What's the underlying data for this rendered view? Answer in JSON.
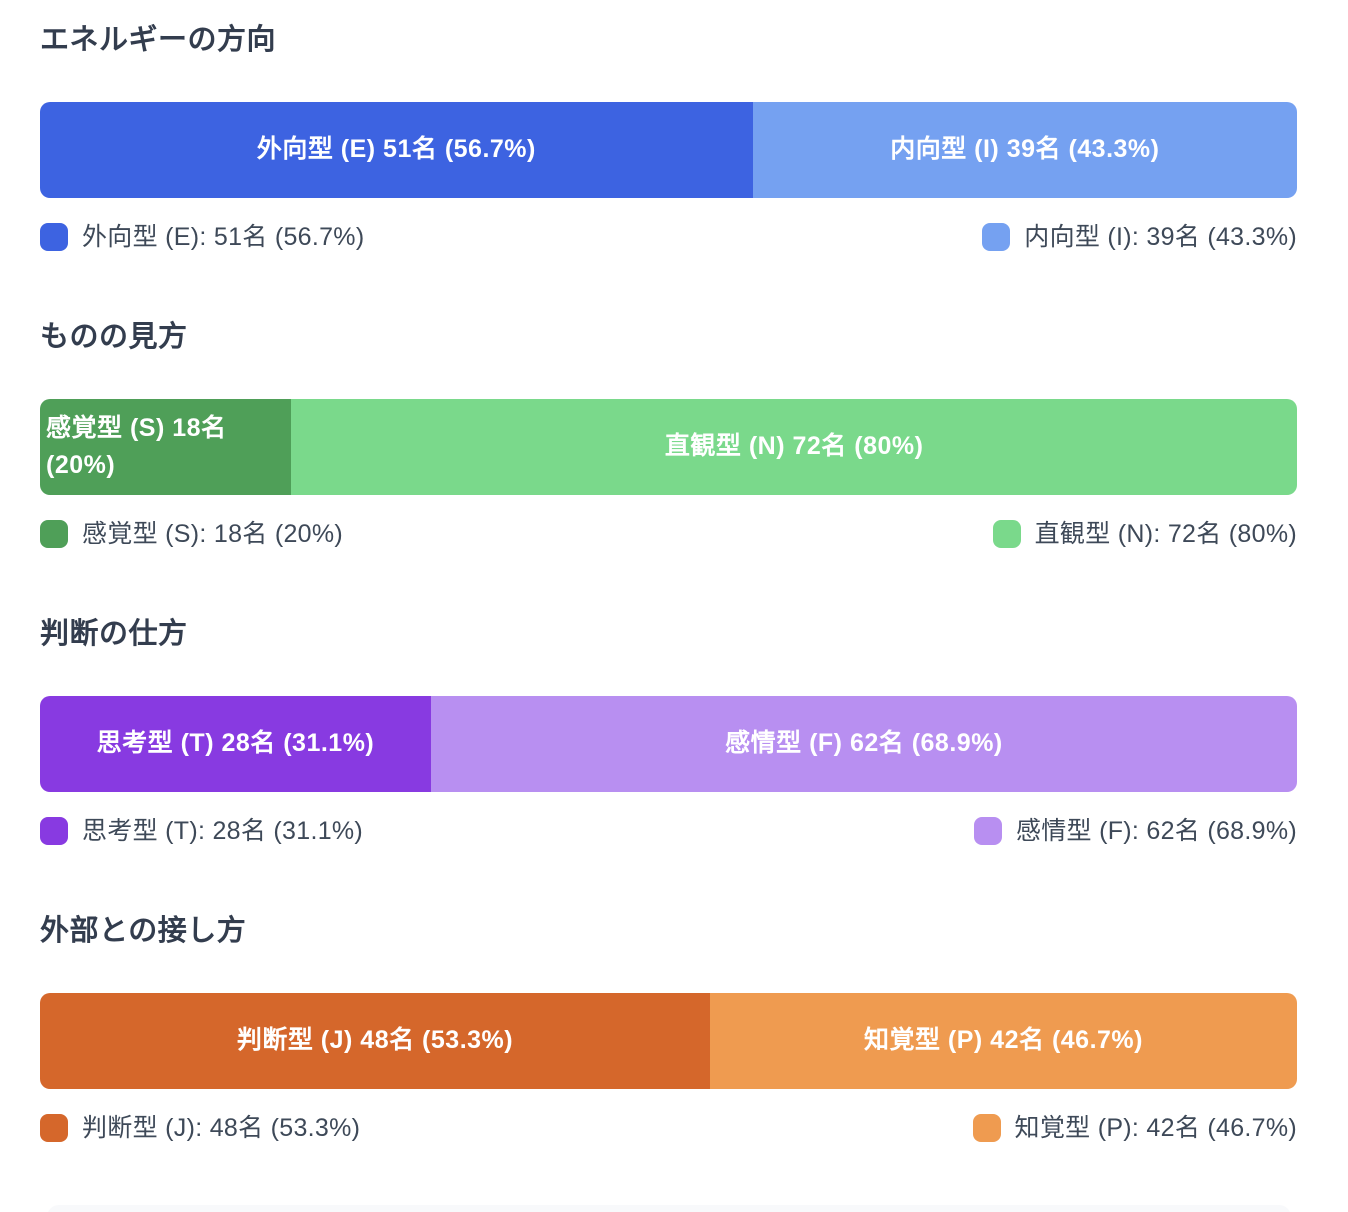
{
  "page": {
    "background": "#ffffff",
    "panel_color": "#F8F9FB",
    "heading_color": "#333D4E",
    "legend_text_color": "#3E4958"
  },
  "chart_data": [
    {
      "type": "bar",
      "variant": "stacked-horizontal-100pct",
      "title": "エネルギーの方向",
      "legend_position": "below, left and right aligned",
      "segments": [
        {
          "name": "外向型 (E)",
          "count": 51,
          "unit": "名",
          "percent": 56.7,
          "color": "#3D63E1",
          "bar_label": "外向型 (E) 51名 (56.7%)",
          "legend_label": "外向型 (E): 51名 (56.7%)"
        },
        {
          "name": "内向型 (I)",
          "count": 39,
          "unit": "名",
          "percent": 43.3,
          "color": "#75A1F1",
          "bar_label": "内向型 (I) 39名 (43.3%)",
          "legend_label": "内向型 (I): 39名 (43.3%)"
        }
      ]
    },
    {
      "type": "bar",
      "variant": "stacked-horizontal-100pct",
      "title": "ものの見方",
      "legend_position": "below, left and right aligned",
      "segments": [
        {
          "name": "感覚型 (S)",
          "count": 18,
          "unit": "名",
          "percent": 20,
          "color": "#4F9F58",
          "bar_label": "感覚型 (S) 18名 (20%)",
          "legend_label": "感覚型 (S): 18名 (20%)"
        },
        {
          "name": "直観型 (N)",
          "count": 72,
          "unit": "名",
          "percent": 80,
          "color": "#7AD98B",
          "bar_label": "直観型 (N) 72名 (80%)",
          "legend_label": "直観型 (N): 72名 (80%)"
        }
      ]
    },
    {
      "type": "bar",
      "variant": "stacked-horizontal-100pct",
      "title": "判断の仕方",
      "legend_position": "below, left and right aligned",
      "segments": [
        {
          "name": "思考型 (T)",
          "count": 28,
          "unit": "名",
          "percent": 31.1,
          "color": "#883AE1",
          "bar_label": "思考型 (T) 28名 (31.1%)",
          "legend_label": "思考型 (T): 28名 (31.1%)"
        },
        {
          "name": "感情型 (F)",
          "count": 62,
          "unit": "名",
          "percent": 68.9,
          "color": "#B88FF1",
          "bar_label": "感情型 (F) 62名 (68.9%)",
          "legend_label": "感情型 (F): 62名 (68.9%)"
        }
      ]
    },
    {
      "type": "bar",
      "variant": "stacked-horizontal-100pct",
      "title": "外部との接し方",
      "legend_position": "below, left and right aligned",
      "segments": [
        {
          "name": "判断型 (J)",
          "count": 48,
          "unit": "名",
          "percent": 53.3,
          "color": "#D5672B",
          "bar_label": "判断型 (J) 48名 (53.3%)",
          "legend_label": "判断型 (J): 48名 (53.3%)"
        },
        {
          "name": "知覚型 (P)",
          "count": 42,
          "unit": "名",
          "percent": 46.7,
          "color": "#EF9B50",
          "bar_label": "知覚型 (P) 42名 (46.7%)",
          "legend_label": "知覚型 (P): 42名 (46.7%)"
        }
      ]
    }
  ]
}
